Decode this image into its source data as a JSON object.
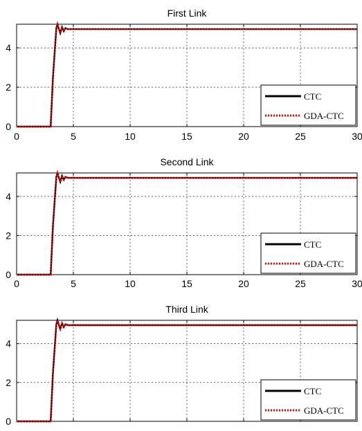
{
  "chart_data": [
    {
      "type": "line",
      "title": "First Link",
      "xlabel": "",
      "ylabel": "",
      "xlim": [
        0,
        30
      ],
      "ylim": [
        0,
        5.2
      ],
      "x_ticks": [
        "0",
        "5",
        "10",
        "15",
        "20",
        "25",
        "30"
      ],
      "y_ticks": [
        "0",
        "2",
        "4"
      ],
      "grid": true,
      "legend": {
        "position": "bottom-right"
      },
      "series": [
        {
          "name": "CTC",
          "color": "#000000",
          "style": "solid",
          "x": [
            0,
            3.0,
            3.2,
            3.5,
            3.6,
            3.7,
            3.85,
            4.0,
            4.15,
            4.3,
            4.5,
            5,
            10,
            15,
            20,
            25,
            30
          ],
          "y": [
            0,
            0,
            2.5,
            5.0,
            5.2,
            5.0,
            4.75,
            5.05,
            4.85,
            5.0,
            4.95,
            4.95,
            4.95,
            4.95,
            4.95,
            4.95,
            4.95
          ]
        },
        {
          "name": "GDA-CTC",
          "color": "#ff0000",
          "style": "dotted",
          "x": [
            0,
            3.0,
            3.2,
            3.5,
            3.6,
            3.7,
            3.85,
            4.0,
            4.15,
            4.3,
            4.5,
            5,
            10,
            15,
            20,
            25,
            30
          ],
          "y": [
            0,
            0,
            2.5,
            5.0,
            5.2,
            5.0,
            4.75,
            5.05,
            4.85,
            5.0,
            4.95,
            4.95,
            4.95,
            4.95,
            4.95,
            4.95,
            4.95
          ]
        }
      ]
    },
    {
      "type": "line",
      "title": "Second Link",
      "xlabel": "",
      "ylabel": "",
      "xlim": [
        0,
        30
      ],
      "ylim": [
        0,
        5.2
      ],
      "x_ticks": [
        "0",
        "5",
        "10",
        "15",
        "20",
        "25",
        "30"
      ],
      "y_ticks": [
        "0",
        "2",
        "4"
      ],
      "grid": true,
      "legend": {
        "position": "bottom-right"
      },
      "series": [
        {
          "name": "CTC",
          "color": "#000000",
          "style": "solid",
          "x": [
            0,
            3.0,
            3.2,
            3.5,
            3.6,
            3.7,
            3.85,
            4.0,
            4.15,
            4.3,
            4.5,
            5,
            10,
            15,
            20,
            25,
            30
          ],
          "y": [
            0,
            0,
            2.5,
            5.0,
            5.2,
            5.0,
            4.75,
            5.05,
            4.85,
            5.0,
            4.95,
            4.95,
            4.95,
            4.95,
            4.95,
            4.95,
            4.95
          ]
        },
        {
          "name": "GDA-CTC",
          "color": "#ff0000",
          "style": "dotted",
          "x": [
            0,
            3.0,
            3.2,
            3.5,
            3.6,
            3.7,
            3.85,
            4.0,
            4.15,
            4.3,
            4.5,
            5,
            10,
            15,
            20,
            25,
            30
          ],
          "y": [
            0,
            0,
            2.5,
            5.0,
            5.2,
            5.0,
            4.75,
            5.05,
            4.85,
            5.0,
            4.95,
            4.95,
            4.95,
            4.95,
            4.95,
            4.95,
            4.95
          ]
        }
      ]
    },
    {
      "type": "line",
      "title": "Third Link",
      "xlabel": "",
      "ylabel": "",
      "xlim": [
        0,
        30
      ],
      "ylim": [
        0,
        5.2
      ],
      "x_ticks": [],
      "y_ticks": [
        "0",
        "2",
        "4"
      ],
      "grid": true,
      "legend": {
        "position": "bottom-right"
      },
      "series": [
        {
          "name": "CTC",
          "color": "#000000",
          "style": "solid",
          "x": [
            0,
            3.0,
            3.2,
            3.5,
            3.6,
            3.7,
            3.85,
            4.0,
            4.15,
            4.3,
            4.5,
            5,
            10,
            15,
            20,
            25,
            30
          ],
          "y": [
            0,
            0,
            2.5,
            5.0,
            5.2,
            5.0,
            4.75,
            5.05,
            4.85,
            5.0,
            4.95,
            4.95,
            4.95,
            4.95,
            4.95,
            4.95,
            4.95
          ]
        },
        {
          "name": "GDA-CTC",
          "color": "#ff0000",
          "style": "dotted",
          "x": [
            0,
            3.0,
            3.2,
            3.5,
            3.6,
            3.7,
            3.85,
            4.0,
            4.15,
            4.3,
            4.5,
            5,
            10,
            15,
            20,
            25,
            30
          ],
          "y": [
            0,
            0,
            2.5,
            5.0,
            5.2,
            5.0,
            4.75,
            5.05,
            4.85,
            5.0,
            4.95,
            4.95,
            4.95,
            4.95,
            4.95,
            4.95,
            4.95
          ]
        }
      ]
    }
  ]
}
